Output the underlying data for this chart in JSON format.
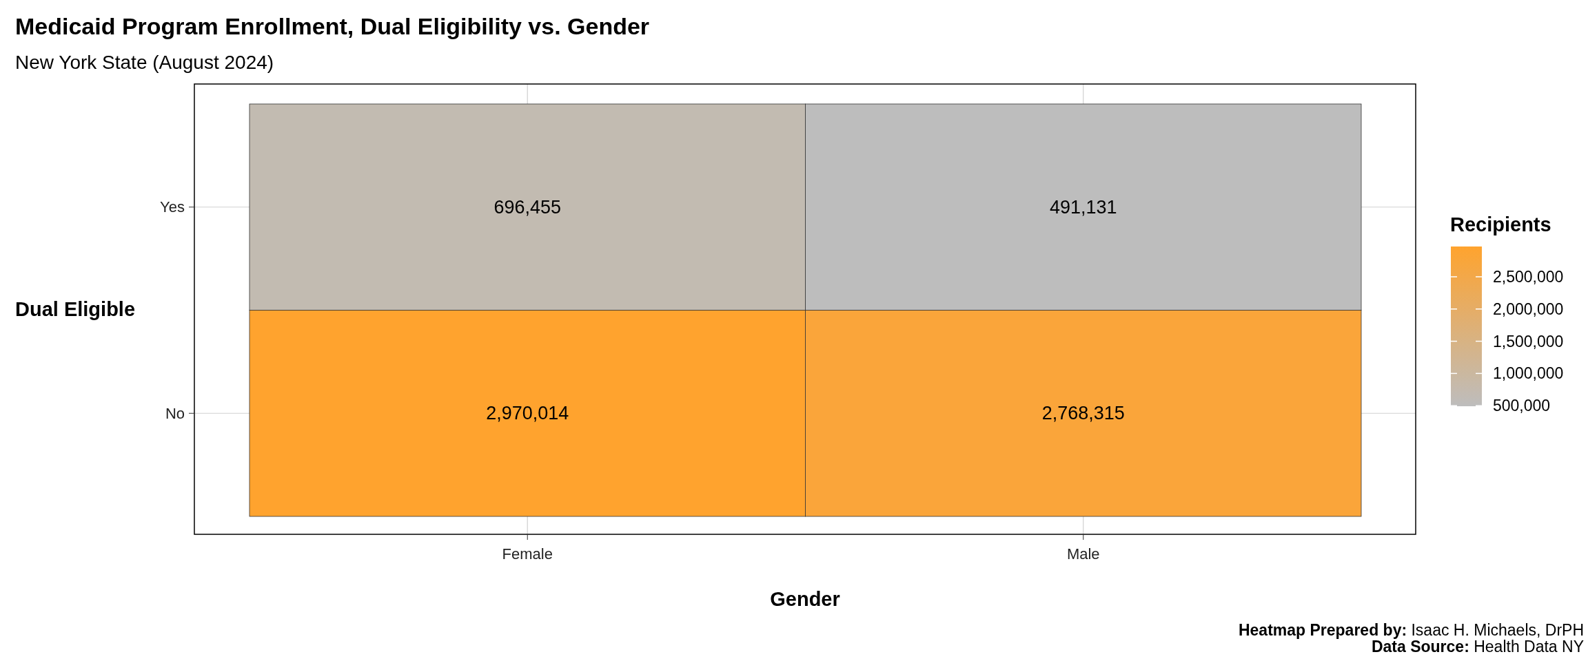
{
  "chart_data": {
    "type": "heatmap",
    "title": "Medicaid Program Enrollment, Dual Eligibility vs. Gender",
    "subtitle": "New York State (August 2024)",
    "xlabel": "Gender",
    "ylabel": "Dual Eligible",
    "legend_title": "Recipients",
    "categories": [
      "Female",
      "Male"
    ],
    "y_categories": [
      "Yes",
      "No"
    ],
    "cells": [
      [
        696455,
        491131
      ],
      [
        2970014,
        2768315
      ]
    ],
    "cell_labels": [
      [
        "696,455",
        "491,131"
      ],
      [
        "2,970,014",
        "2,768,315"
      ]
    ],
    "clim": [
      491131,
      2970014
    ],
    "cticks": [
      {
        "value": 500000,
        "label": "500,000"
      },
      {
        "value": 1000000,
        "label": "1,000,000"
      },
      {
        "value": 1500000,
        "label": "1,500,000"
      },
      {
        "value": 2000000,
        "label": "2,000,000"
      },
      {
        "value": 2500000,
        "label": "2,500,000"
      }
    ],
    "grid": true,
    "annotations": [
      "Heatmap Prepared by: Isaac H. Michaels, DrPH",
      "Data Source: Health Data NY"
    ]
  }
}
